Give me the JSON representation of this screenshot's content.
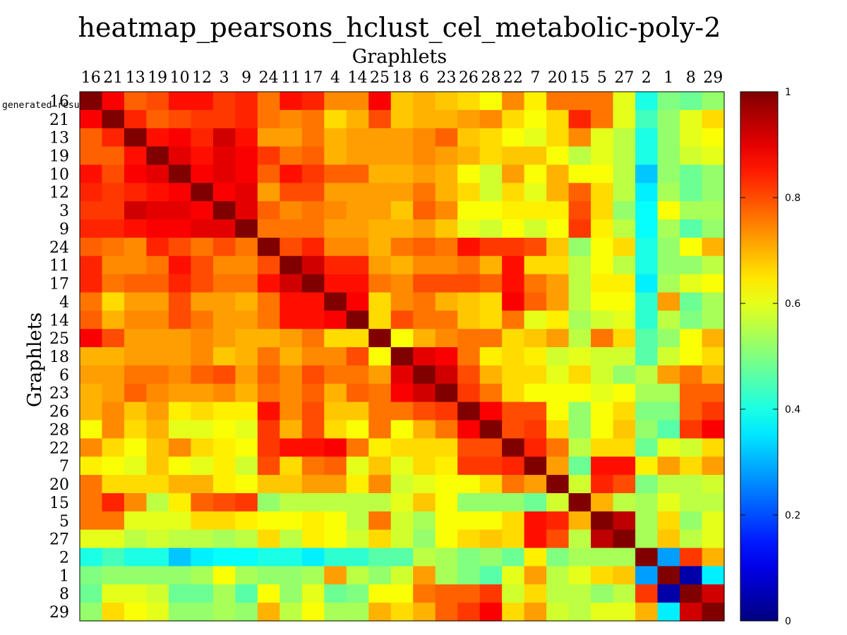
{
  "chart_data": {
    "type": "heatmap",
    "title": "heatmap_pearsons_hclust_cel_metabolic-poly-2",
    "xlabel": "Graphlets",
    "ylabel": "Graphlets",
    "corner_note": "generated resu",
    "labels": [
      "16",
      "21",
      "13",
      "19",
      "10",
      "12",
      "3",
      "9",
      "24",
      "11",
      "17",
      "4",
      "14",
      "25",
      "18",
      "6",
      "23",
      "26",
      "28",
      "22",
      "7",
      "20",
      "15",
      "5",
      "27",
      "2",
      "1",
      "8",
      "29"
    ],
    "colorbar": {
      "min": 0,
      "max": 1,
      "ticks": [
        {
          "value": 0,
          "label": "0"
        },
        {
          "value": 0.2,
          "label": "0.2"
        },
        {
          "value": 0.4,
          "label": "0.4"
        },
        {
          "value": 0.6,
          "label": "0.6"
        },
        {
          "value": 0.8,
          "label": "0.8"
        },
        {
          "value": 1,
          "label": "1"
        }
      ],
      "colormap": "jet"
    },
    "values": [
      [
        1.0,
        0.88,
        0.78,
        0.8,
        0.86,
        0.86,
        0.82,
        0.84,
        0.76,
        0.86,
        0.84,
        0.74,
        0.74,
        0.88,
        0.68,
        0.7,
        0.68,
        0.66,
        0.62,
        0.74,
        0.64,
        0.76,
        0.76,
        0.76,
        0.6,
        0.4,
        0.5,
        0.48,
        0.52
      ],
      [
        0.88,
        1.0,
        0.84,
        0.78,
        0.8,
        0.82,
        0.82,
        0.84,
        0.76,
        0.74,
        0.76,
        0.66,
        0.7,
        0.8,
        0.68,
        0.7,
        0.7,
        0.72,
        0.74,
        0.66,
        0.62,
        0.66,
        0.84,
        0.76,
        0.6,
        0.44,
        0.52,
        0.6,
        0.66
      ],
      [
        0.78,
        0.84,
        1.0,
        0.86,
        0.88,
        0.84,
        0.92,
        0.86,
        0.72,
        0.72,
        0.76,
        0.7,
        0.72,
        0.72,
        0.72,
        0.74,
        0.78,
        0.68,
        0.66,
        0.62,
        0.6,
        0.66,
        0.74,
        0.6,
        0.56,
        0.4,
        0.52,
        0.6,
        0.62
      ],
      [
        0.78,
        0.78,
        0.86,
        1.0,
        0.9,
        0.86,
        0.9,
        0.88,
        0.82,
        0.76,
        0.78,
        0.7,
        0.72,
        0.72,
        0.72,
        0.74,
        0.72,
        0.7,
        0.66,
        0.68,
        0.68,
        0.62,
        0.56,
        0.6,
        0.56,
        0.4,
        0.52,
        0.58,
        0.6
      ],
      [
        0.86,
        0.8,
        0.88,
        0.9,
        1.0,
        0.88,
        0.9,
        0.88,
        0.78,
        0.86,
        0.82,
        0.78,
        0.78,
        0.7,
        0.7,
        0.72,
        0.7,
        0.62,
        0.58,
        0.72,
        0.62,
        0.7,
        0.62,
        0.62,
        0.56,
        0.32,
        0.52,
        0.48,
        0.52
      ],
      [
        0.84,
        0.82,
        0.84,
        0.86,
        0.88,
        1.0,
        0.88,
        0.9,
        0.72,
        0.8,
        0.8,
        0.72,
        0.72,
        0.72,
        0.72,
        0.76,
        0.7,
        0.66,
        0.58,
        0.66,
        0.6,
        0.7,
        0.78,
        0.66,
        0.56,
        0.36,
        0.54,
        0.48,
        0.52
      ],
      [
        0.82,
        0.82,
        0.92,
        0.9,
        0.9,
        0.88,
        1.0,
        0.9,
        0.78,
        0.74,
        0.76,
        0.74,
        0.72,
        0.72,
        0.68,
        0.78,
        0.74,
        0.62,
        0.62,
        0.64,
        0.64,
        0.64,
        0.8,
        0.66,
        0.52,
        0.38,
        0.62,
        0.54,
        0.54
      ],
      [
        0.84,
        0.84,
        0.86,
        0.88,
        0.88,
        0.9,
        0.9,
        1.0,
        0.76,
        0.76,
        0.76,
        0.72,
        0.72,
        0.7,
        0.7,
        0.72,
        0.68,
        0.6,
        0.58,
        0.62,
        0.58,
        0.62,
        0.82,
        0.64,
        0.56,
        0.38,
        0.54,
        0.46,
        0.52
      ],
      [
        0.78,
        0.76,
        0.74,
        0.84,
        0.8,
        0.76,
        0.8,
        0.76,
        1.0,
        0.8,
        0.84,
        0.74,
        0.74,
        0.7,
        0.76,
        0.78,
        0.76,
        0.86,
        0.82,
        0.82,
        0.8,
        0.68,
        0.52,
        0.62,
        0.66,
        0.4,
        0.52,
        0.62,
        0.7
      ],
      [
        0.84,
        0.74,
        0.74,
        0.76,
        0.86,
        0.8,
        0.74,
        0.74,
        0.8,
        1.0,
        0.92,
        0.84,
        0.84,
        0.72,
        0.7,
        0.74,
        0.74,
        0.76,
        0.7,
        0.86,
        0.66,
        0.66,
        0.56,
        0.62,
        0.56,
        0.4,
        0.52,
        0.52,
        0.56
      ],
      [
        0.84,
        0.76,
        0.78,
        0.78,
        0.84,
        0.8,
        0.76,
        0.76,
        0.86,
        0.92,
        1.0,
        0.86,
        0.86,
        0.76,
        0.74,
        0.8,
        0.8,
        0.8,
        0.78,
        0.86,
        0.76,
        0.72,
        0.56,
        0.64,
        0.64,
        0.36,
        0.54,
        0.6,
        0.62
      ],
      [
        0.76,
        0.66,
        0.72,
        0.72,
        0.8,
        0.72,
        0.72,
        0.7,
        0.76,
        0.86,
        0.86,
        1.0,
        0.88,
        0.66,
        0.74,
        0.76,
        0.7,
        0.68,
        0.66,
        0.88,
        0.78,
        0.72,
        0.56,
        0.62,
        0.62,
        0.42,
        0.72,
        0.48,
        0.54
      ],
      [
        0.78,
        0.7,
        0.74,
        0.74,
        0.8,
        0.76,
        0.72,
        0.72,
        0.76,
        0.86,
        0.86,
        0.88,
        1.0,
        0.66,
        0.8,
        0.76,
        0.76,
        0.68,
        0.66,
        0.76,
        0.6,
        0.64,
        0.54,
        0.58,
        0.6,
        0.42,
        0.56,
        0.5,
        0.54
      ],
      [
        0.88,
        0.8,
        0.72,
        0.72,
        0.72,
        0.74,
        0.72,
        0.7,
        0.7,
        0.72,
        0.76,
        0.66,
        0.66,
        1.0,
        0.62,
        0.7,
        0.74,
        0.76,
        0.76,
        0.66,
        0.68,
        0.72,
        0.56,
        0.76,
        0.66,
        0.46,
        0.52,
        0.62,
        0.7
      ],
      [
        0.7,
        0.7,
        0.72,
        0.72,
        0.72,
        0.74,
        0.68,
        0.7,
        0.76,
        0.7,
        0.74,
        0.74,
        0.8,
        0.62,
        1.0,
        0.9,
        0.88,
        0.76,
        0.64,
        0.66,
        0.64,
        0.58,
        0.6,
        0.58,
        0.58,
        0.46,
        0.58,
        0.62,
        0.66
      ],
      [
        0.72,
        0.72,
        0.76,
        0.76,
        0.74,
        0.78,
        0.8,
        0.72,
        0.78,
        0.74,
        0.8,
        0.76,
        0.76,
        0.72,
        0.9,
        1.0,
        0.92,
        0.8,
        0.7,
        0.66,
        0.66,
        0.6,
        0.66,
        0.58,
        0.52,
        0.56,
        0.72,
        0.76,
        0.7
      ],
      [
        0.7,
        0.72,
        0.78,
        0.74,
        0.72,
        0.72,
        0.74,
        0.7,
        0.76,
        0.74,
        0.78,
        0.7,
        0.78,
        0.76,
        0.88,
        0.92,
        1.0,
        0.82,
        0.76,
        0.66,
        0.62,
        0.62,
        0.62,
        0.6,
        0.62,
        0.54,
        0.54,
        0.78,
        0.78
      ],
      [
        0.7,
        0.74,
        0.68,
        0.72,
        0.64,
        0.66,
        0.64,
        0.64,
        0.86,
        0.74,
        0.8,
        0.68,
        0.68,
        0.76,
        0.76,
        0.8,
        0.82,
        1.0,
        0.88,
        0.8,
        0.8,
        0.62,
        0.52,
        0.62,
        0.66,
        0.5,
        0.5,
        0.78,
        0.82
      ],
      [
        0.62,
        0.74,
        0.66,
        0.7,
        0.6,
        0.6,
        0.62,
        0.6,
        0.82,
        0.7,
        0.8,
        0.66,
        0.62,
        0.76,
        0.62,
        0.7,
        0.76,
        0.88,
        1.0,
        0.8,
        0.82,
        0.66,
        0.52,
        0.62,
        0.68,
        0.52,
        0.46,
        0.82,
        0.88
      ],
      [
        0.74,
        0.66,
        0.62,
        0.68,
        0.74,
        0.66,
        0.64,
        0.62,
        0.82,
        0.86,
        0.86,
        0.88,
        0.76,
        0.64,
        0.66,
        0.66,
        0.66,
        0.8,
        0.8,
        1.0,
        0.84,
        0.76,
        0.56,
        0.66,
        0.66,
        0.48,
        0.6,
        0.58,
        0.66
      ],
      [
        0.64,
        0.62,
        0.6,
        0.68,
        0.62,
        0.6,
        0.64,
        0.58,
        0.8,
        0.66,
        0.76,
        0.78,
        0.6,
        0.68,
        0.6,
        0.66,
        0.64,
        0.82,
        0.82,
        0.84,
        1.0,
        0.72,
        0.48,
        0.86,
        0.86,
        0.64,
        0.72,
        0.66,
        0.72
      ],
      [
        0.76,
        0.66,
        0.66,
        0.66,
        0.7,
        0.7,
        0.64,
        0.62,
        0.68,
        0.68,
        0.72,
        0.72,
        0.64,
        0.74,
        0.58,
        0.6,
        0.62,
        0.62,
        0.66,
        0.76,
        0.72,
        1.0,
        0.58,
        0.84,
        0.8,
        0.5,
        0.56,
        0.56,
        0.58
      ],
      [
        0.76,
        0.84,
        0.74,
        0.56,
        0.64,
        0.78,
        0.8,
        0.82,
        0.52,
        0.56,
        0.56,
        0.56,
        0.56,
        0.56,
        0.6,
        0.68,
        0.62,
        0.52,
        0.52,
        0.52,
        0.48,
        0.58,
        1.0,
        0.7,
        0.56,
        0.54,
        0.6,
        0.56,
        0.56
      ],
      [
        0.76,
        0.76,
        0.6,
        0.6,
        0.6,
        0.66,
        0.66,
        0.64,
        0.62,
        0.62,
        0.64,
        0.62,
        0.56,
        0.76,
        0.58,
        0.54,
        0.62,
        0.62,
        0.62,
        0.66,
        0.86,
        0.84,
        0.7,
        1.0,
        0.94,
        0.54,
        0.66,
        0.52,
        0.6
      ],
      [
        0.6,
        0.6,
        0.56,
        0.58,
        0.56,
        0.56,
        0.54,
        0.56,
        0.66,
        0.56,
        0.64,
        0.62,
        0.58,
        0.66,
        0.58,
        0.52,
        0.62,
        0.66,
        0.68,
        0.66,
        0.86,
        0.8,
        0.56,
        0.94,
        1.0,
        0.54,
        0.68,
        0.56,
        0.6
      ],
      [
        0.4,
        0.44,
        0.4,
        0.4,
        0.32,
        0.36,
        0.38,
        0.38,
        0.4,
        0.4,
        0.36,
        0.42,
        0.42,
        0.46,
        0.46,
        0.56,
        0.54,
        0.5,
        0.52,
        0.48,
        0.64,
        0.5,
        0.54,
        0.54,
        0.54,
        1.0,
        0.28,
        0.82,
        0.7
      ],
      [
        0.5,
        0.52,
        0.52,
        0.52,
        0.52,
        0.54,
        0.62,
        0.54,
        0.52,
        0.52,
        0.54,
        0.72,
        0.56,
        0.52,
        0.58,
        0.72,
        0.54,
        0.5,
        0.46,
        0.6,
        0.72,
        0.56,
        0.6,
        0.66,
        0.68,
        0.28,
        1.0,
        0.04,
        0.36
      ],
      [
        0.48,
        0.6,
        0.6,
        0.58,
        0.48,
        0.48,
        0.54,
        0.46,
        0.62,
        0.52,
        0.6,
        0.48,
        0.5,
        0.62,
        0.62,
        0.76,
        0.78,
        0.78,
        0.82,
        0.58,
        0.66,
        0.56,
        0.56,
        0.52,
        0.56,
        0.82,
        0.04,
        1.0,
        0.92
      ],
      [
        0.52,
        0.66,
        0.62,
        0.6,
        0.52,
        0.52,
        0.54,
        0.52,
        0.7,
        0.56,
        0.62,
        0.54,
        0.54,
        0.7,
        0.66,
        0.7,
        0.78,
        0.82,
        0.88,
        0.66,
        0.72,
        0.58,
        0.56,
        0.6,
        0.6,
        0.7,
        0.36,
        0.92,
        1.0
      ]
    ]
  }
}
